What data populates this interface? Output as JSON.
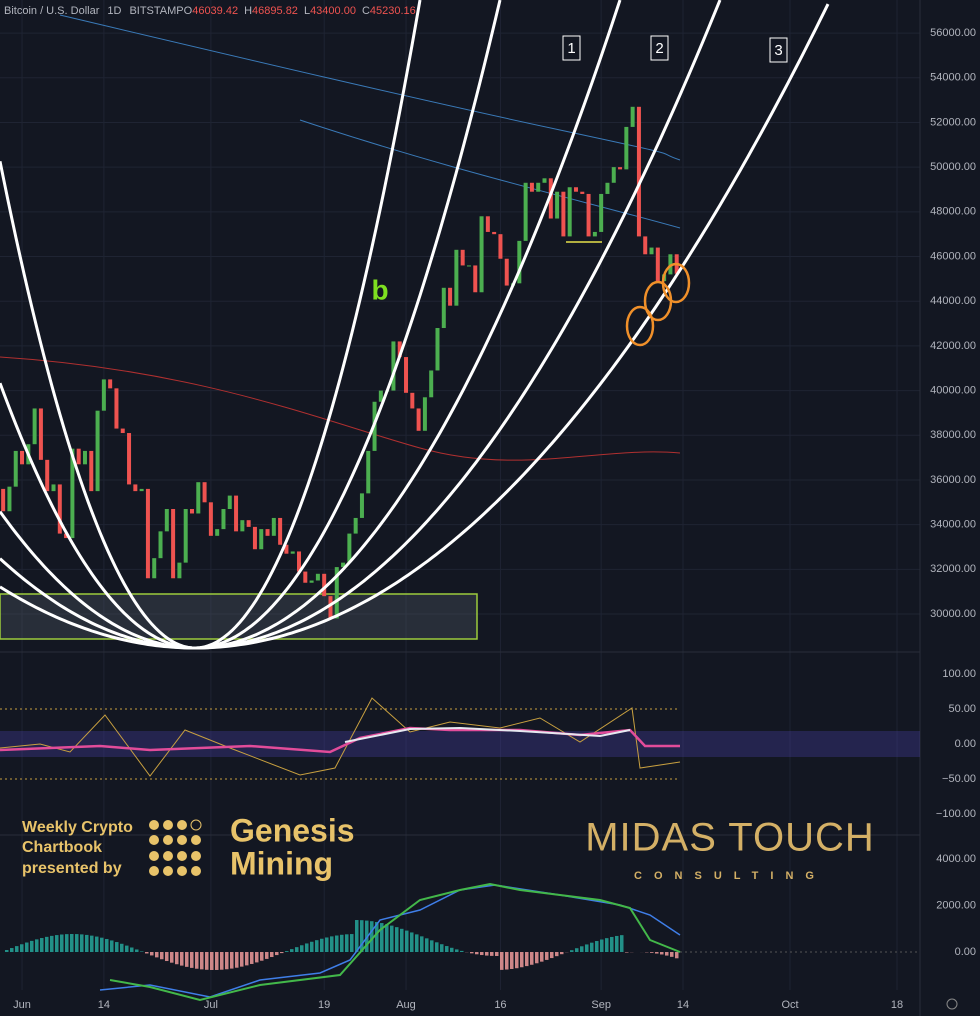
{
  "header": {
    "symbol": "Bitcoin / U.S. Dollar",
    "interval": "1D",
    "exchange": "BITSTAMP",
    "ohlc": [
      {
        "key": "O",
        "value": "46039.42"
      },
      {
        "key": "H",
        "value": "46895.82"
      },
      {
        "key": "L",
        "value": "43400.00"
      },
      {
        "key": "C",
        "value": "45230.16"
      }
    ]
  },
  "annotations": [
    "1",
    "2",
    "3",
    "b"
  ],
  "branding": {
    "presenter": [
      "Weekly Crypto",
      "Chartbook",
      "presented by"
    ],
    "sponsor": [
      "Genesis",
      "Mining"
    ],
    "logo": "MIDAS TOUCH",
    "logo_sub": "CONSULTING"
  },
  "chart_data": [
    {
      "type": "candlestick",
      "up_color": "#4caf50",
      "down_color": "#ef5350",
      "grid": true,
      "xlim": [
        0.5,
        146.65
      ],
      "xticks": [
        {
          "value": 4,
          "label": "Jun"
        },
        {
          "value": 17,
          "label": "14"
        },
        {
          "value": 34,
          "label": "Jul"
        },
        {
          "value": 52,
          "label": "19"
        },
        {
          "value": 65,
          "label": "Aug"
        },
        {
          "value": 80,
          "label": "16"
        },
        {
          "value": 96,
          "label": "Sep"
        },
        {
          "value": 109,
          "label": "14"
        },
        {
          "value": 126,
          "label": "Oct"
        },
        {
          "value": 143,
          "label": "18"
        }
      ],
      "ylim": [
        28390,
        57480
      ],
      "yticks": [
        {
          "value": 30000,
          "label": "30000.00"
        },
        {
          "value": 32000,
          "label": "32000.00"
        },
        {
          "value": 34000,
          "label": "34000.00"
        },
        {
          "value": 36000,
          "label": "36000.00"
        },
        {
          "value": 38000,
          "label": "38000.00"
        },
        {
          "value": 40000,
          "label": "40000.00"
        },
        {
          "value": 42000,
          "label": "42000.00"
        },
        {
          "value": 44000,
          "label": "44000.00"
        },
        {
          "value": 46000,
          "label": "46000.00"
        },
        {
          "value": 48000,
          "label": "48000.00"
        },
        {
          "value": 50000,
          "label": "50000.00"
        },
        {
          "value": 52000,
          "label": "52000.00"
        },
        {
          "value": 54000,
          "label": "54000.00"
        },
        {
          "value": 56000,
          "label": "56000.00"
        }
      ],
      "series": [
        {
          "name": "Close",
          "values": [
            35600,
            34600,
            35700,
            37300,
            36700,
            37600,
            39200,
            36900,
            35500,
            35800,
            33600,
            33400,
            37400,
            36700,
            37300,
            35500,
            39100,
            40500,
            40100,
            38300,
            38100,
            35800,
            35500,
            35600,
            31600,
            32500,
            33700,
            34700,
            31600,
            32300,
            34700,
            34500,
            35900,
            35000,
            33500,
            33800,
            34700,
            35300,
            33700,
            34200,
            33900,
            32900,
            33800,
            33500,
            34300,
            33100,
            32700,
            32800,
            31900,
            31400,
            31500,
            31800,
            30800,
            29800,
            32100,
            32300,
            33600,
            34300,
            35400,
            37300,
            39500,
            40000,
            40000,
            42200,
            41500,
            39900,
            39200,
            38200,
            39700,
            40900,
            42800,
            44600,
            43800,
            46300,
            45600,
            45600,
            44400,
            47800,
            47100,
            47000,
            45900,
            44700,
            44800,
            46700,
            49300,
            48900,
            49300,
            49500,
            47700,
            48900,
            46900,
            49100,
            48900,
            48800,
            46900,
            47100,
            48800,
            49300,
            50000,
            49900,
            51800,
            52700,
            46900,
            46100,
            46400,
            44900,
            45200,
            46100,
            45230
          ]
        }
      ]
    },
    {
      "type": "oscillator",
      "ylim": [
        -130,
        127
      ],
      "yticks": [
        {
          "value": 100,
          "label": "100.00"
        },
        {
          "value": 50,
          "label": "50.00"
        },
        {
          "value": 0,
          "label": "0.00"
        },
        {
          "value": -50,
          "label": "−50.00"
        },
        {
          "value": -100,
          "label": "−100.00"
        }
      ]
    },
    {
      "type": "macd",
      "ylim": [
        -1630,
        5030
      ],
      "yticks": [
        {
          "value": 4000,
          "label": "4000.00"
        },
        {
          "value": 2000,
          "label": "2000.00"
        },
        {
          "value": 0,
          "label": "0.00"
        }
      ]
    }
  ]
}
